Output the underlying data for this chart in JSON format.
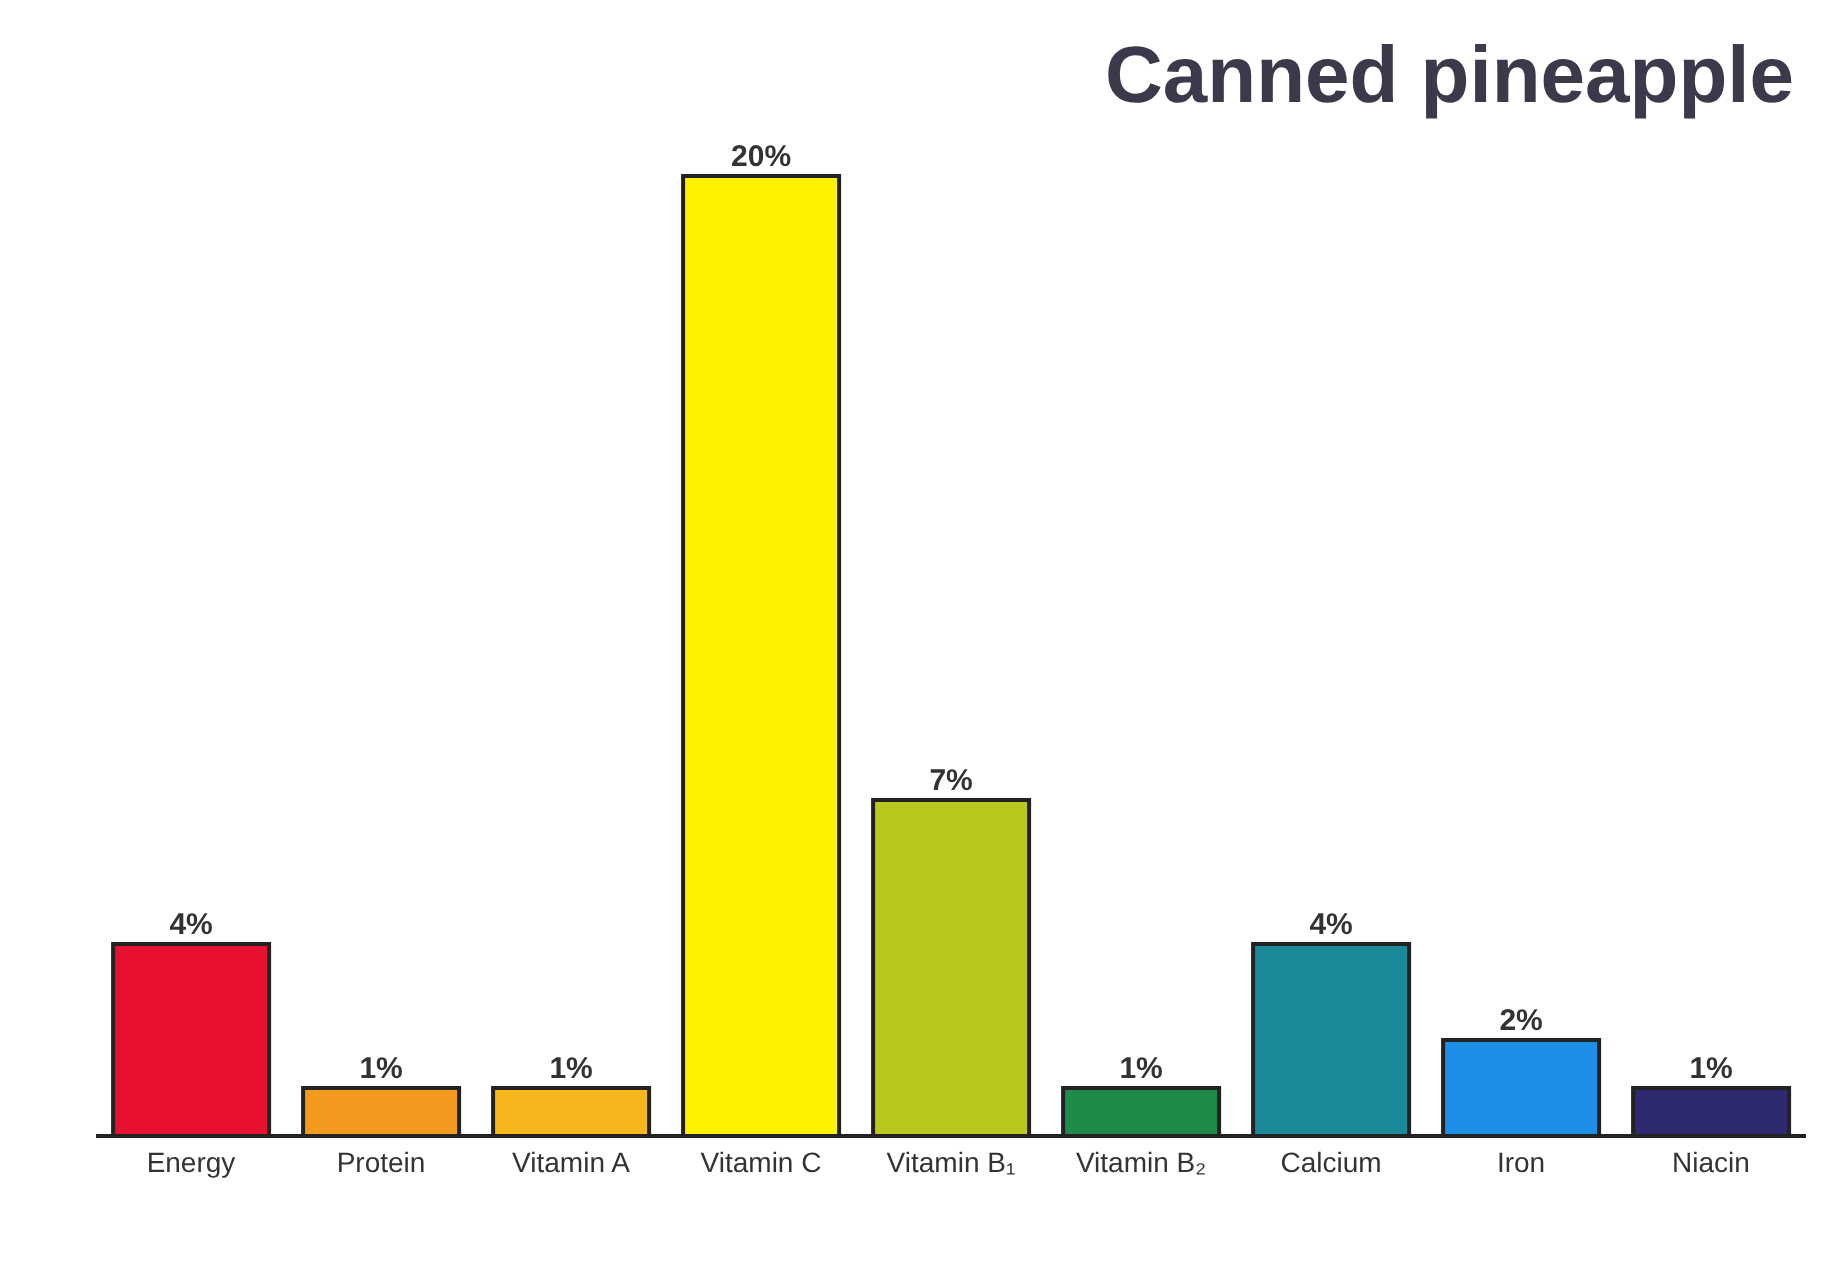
{
  "chart_data": {
    "type": "bar",
    "title": "Canned pineapple",
    "categories": [
      "Energy",
      "Protein",
      "Vitamin A",
      "Vitamin C",
      "Vitamin B₁",
      "Vitamin B₂",
      "Calcium",
      "Iron",
      "Niacin"
    ],
    "values": [
      4,
      1,
      1,
      20,
      7,
      1,
      4,
      2,
      1
    ],
    "colors": [
      "#e8102e",
      "#f39a1e",
      "#f5b71c",
      "#fff200",
      "#b8c81e",
      "#1e8a4a",
      "#1a8a98",
      "#1e8fe6",
      "#2e2a6e"
    ],
    "value_labels": [
      "4%",
      "1%",
      "1%",
      "20%",
      "7%",
      "1%",
      "4%",
      "2%",
      "1%"
    ],
    "grid": false,
    "legend": false
  }
}
